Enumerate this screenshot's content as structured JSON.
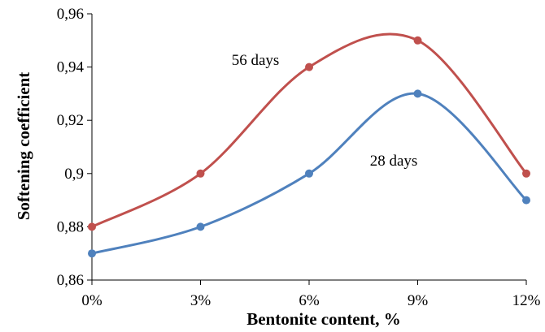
{
  "chart_data": {
    "type": "line",
    "smooth": true,
    "categories": [
      "0%",
      "3%",
      "6%",
      "9%",
      "12%"
    ],
    "series": [
      {
        "name": "56 days",
        "values": [
          0.88,
          0.9,
          0.94,
          0.95,
          0.9
        ],
        "color": "#c0504d"
      },
      {
        "name": "28 days",
        "values": [
          0.87,
          0.88,
          0.9,
          0.93,
          0.89
        ],
        "color": "#4f81bd"
      }
    ],
    "ylim": [
      0.86,
      0.96
    ],
    "yticks": [
      {
        "value": 0.86,
        "label": "0,86"
      },
      {
        "value": 0.88,
        "label": "0,88"
      },
      {
        "value": 0.9,
        "label": "0,9"
      },
      {
        "value": 0.92,
        "label": "0,92"
      },
      {
        "value": 0.94,
        "label": "0,94"
      },
      {
        "value": 0.96,
        "label": "0,96"
      }
    ],
    "xlabel": "Bentonite content, %",
    "ylabel": "Softening coefficient",
    "annotations": [
      {
        "text": "56 days",
        "series": 0
      },
      {
        "text": "28 days",
        "series": 1
      }
    ],
    "grid": false,
    "legend": "none"
  }
}
